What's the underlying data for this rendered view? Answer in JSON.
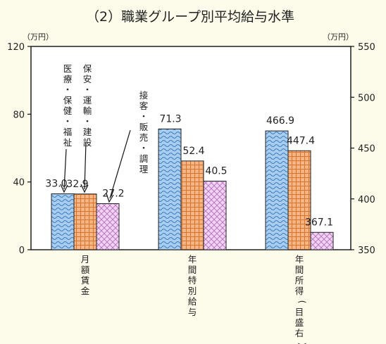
{
  "chart_data": {
    "type": "bar",
    "title": "（2）職業グループ別平均給与水準",
    "y_left": {
      "unit_label": "（万円）",
      "ylim": [
        0,
        120
      ],
      "ticks": [
        "0",
        "40",
        "80",
        "120"
      ]
    },
    "y_right": {
      "unit_label": "（万円）",
      "ylim": [
        350,
        550
      ],
      "ticks": [
        "350",
        "400",
        "450",
        "500",
        "550"
      ]
    },
    "categories": [
      "月額賃金",
      "年間特別給与",
      "年間所得(目盛右)"
    ],
    "series": [
      {
        "name": "医療・保健・福祉",
        "values": [
          33.0,
          71.3,
          466.9
        ],
        "labels": [
          "33.0",
          "71.3",
          "466.9"
        ],
        "color": "#a9cdee",
        "pattern": "wave"
      },
      {
        "name": "保安・運輸・建設",
        "values": [
          32.9,
          52.4,
          447.4
        ],
        "labels": [
          "32.9",
          "52.4",
          "447.4"
        ],
        "color": "#f6b584",
        "pattern": "grid"
      },
      {
        "name": "接客・販売・調理",
        "values": [
          27.2,
          40.5,
          367.1
        ],
        "labels": [
          "27.2",
          "40.5",
          "367.1"
        ],
        "color": "#e9c4ec",
        "pattern": "crosshatch"
      }
    ],
    "axis_per_category": [
      "left",
      "left",
      "right"
    ],
    "grid": false
  }
}
